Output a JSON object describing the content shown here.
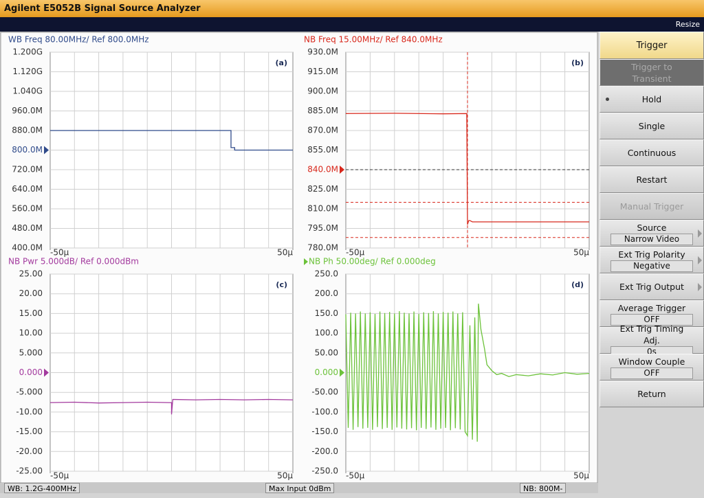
{
  "app": {
    "title": "Agilent E5052B Signal Source Analyzer",
    "resize": "Resize"
  },
  "menu": {
    "title": "Trigger",
    "keys": [
      {
        "label": "Trigger to Transient",
        "disabled": true
      },
      {
        "label": "Hold",
        "selected": true
      },
      {
        "label": "Single"
      },
      {
        "label": "Continuous"
      },
      {
        "label": "Restart"
      },
      {
        "label": "Manual Trigger",
        "disabled": true
      },
      {
        "label": "Source",
        "value": "Narrow Video",
        "submenu": true
      },
      {
        "label": "Ext Trig Polarity",
        "value": "Negative",
        "submenu": true
      },
      {
        "label": "Ext Trig Output",
        "submenu": true
      },
      {
        "label": "Average Trigger",
        "value": "OFF"
      },
      {
        "label": "Ext Trig Timing Adj.",
        "value": "0s"
      },
      {
        "label": "Window Couple",
        "value": "OFF"
      },
      {
        "label": "Return"
      }
    ]
  },
  "status": [
    "WB: 1.2G-400MHz",
    "Max Input 0dBm",
    "NB: 800M-"
  ],
  "chart_data": [
    {
      "type": "line",
      "title": "WB Freq 80.00MHz/ Ref 800.0MHz",
      "panel_label": "(a)",
      "color": "#2f4a8a",
      "x": [
        -50,
        24.5,
        24.5,
        26,
        26,
        50
      ],
      "values": [
        880,
        880,
        810,
        810,
        800,
        800
      ],
      "xlim": [
        -50,
        50
      ],
      "xticks": [
        {
          "value": -50,
          "label": "-50µ"
        },
        {
          "value": 50,
          "label": "50µ"
        }
      ],
      "xgrid": [
        -40,
        -30,
        -20,
        -10,
        0,
        10,
        20,
        30,
        40
      ],
      "ylim": [
        400,
        1200
      ],
      "yticks": [
        {
          "value": 400,
          "label": "400.0M"
        },
        {
          "value": 480,
          "label": "480.0M"
        },
        {
          "value": 560,
          "label": "560.0M"
        },
        {
          "value": 640,
          "label": "640.0M"
        },
        {
          "value": 720,
          "label": "720.0M"
        },
        {
          "value": 800,
          "label": "800.0M"
        },
        {
          "value": 880,
          "label": "880.0M"
        },
        {
          "value": 960,
          "label": "960.0M"
        },
        {
          "value": 1040,
          "label": "1.040G"
        },
        {
          "value": 1120,
          "label": "1.120G"
        },
        {
          "value": 1200,
          "label": "1.200G"
        }
      ],
      "ref_marker": 800,
      "grid": true
    },
    {
      "type": "line",
      "title": "NB Freq 15.00MHz/ Ref 840.0MHz",
      "panel_label": "(b)",
      "color": "#d8281c",
      "x": [
        -50,
        -30,
        -10,
        -0.3,
        0,
        0.5,
        1,
        2,
        50
      ],
      "values": [
        883,
        883.2,
        882.8,
        883,
        798,
        801,
        801,
        800,
        800
      ],
      "xlim": [
        -50,
        50
      ],
      "xticks": [
        {
          "value": -50,
          "label": "-50µ"
        },
        {
          "value": 50,
          "label": "50µ"
        }
      ],
      "xgrid": [
        -40,
        -30,
        -20,
        -10,
        0,
        10,
        20,
        30,
        40
      ],
      "ylim": [
        780,
        930
      ],
      "yticks": [
        {
          "value": 780,
          "label": "780.0M"
        },
        {
          "value": 795,
          "label": "795.0M"
        },
        {
          "value": 810,
          "label": "810.0M"
        },
        {
          "value": 825,
          "label": "825.0M"
        },
        {
          "value": 840,
          "label": "840.0M"
        },
        {
          "value": 855,
          "label": "855.0M"
        },
        {
          "value": 870,
          "label": "870.0M"
        },
        {
          "value": 885,
          "label": "885.0M"
        },
        {
          "value": 900,
          "label": "900.0M"
        },
        {
          "value": 915,
          "label": "915.0M"
        },
        {
          "value": 930,
          "label": "930.0M"
        }
      ],
      "ref_marker": 840,
      "ref_line": true,
      "hlines": [
        815,
        788
      ],
      "vline": 0,
      "grid": true
    },
    {
      "type": "line",
      "title": "NB Pwr 5.000dB/ Ref 0.000dBm",
      "panel_label": "(c)",
      "color": "#a33a9e",
      "x": [
        -50,
        -40,
        -30,
        -20,
        -10,
        -1,
        0,
        0,
        0.5,
        10,
        20,
        30,
        40,
        50
      ],
      "values": [
        -7.6,
        -7.5,
        -7.7,
        -7.6,
        -7.5,
        -7.6,
        -7.6,
        -10.6,
        -6.8,
        -6.9,
        -6.8,
        -6.9,
        -6.8,
        -6.9
      ],
      "xlim": [
        -50,
        50
      ],
      "xticks": [
        {
          "value": -50,
          "label": "-50µ"
        },
        {
          "value": 50,
          "label": "50µ"
        }
      ],
      "xgrid": [
        -40,
        -30,
        -20,
        -10,
        0,
        10,
        20,
        30,
        40
      ],
      "ylim": [
        -25,
        25
      ],
      "yticks": [
        {
          "value": -25,
          "label": "-25.00"
        },
        {
          "value": -20,
          "label": "-20.00"
        },
        {
          "value": -15,
          "label": "-15.00"
        },
        {
          "value": -10,
          "label": "-10.00"
        },
        {
          "value": -5,
          "label": "-5.000"
        },
        {
          "value": 0,
          "label": "0.000"
        },
        {
          "value": 5,
          "label": "5.000"
        },
        {
          "value": 10,
          "label": "10.00"
        },
        {
          "value": 15,
          "label": "15.00"
        },
        {
          "value": 20,
          "label": "20.00"
        },
        {
          "value": 25,
          "label": "25.00"
        }
      ],
      "ref_marker": 0,
      "grid": true
    },
    {
      "type": "line",
      "title": "NB Ph 50.00deg/ Ref 0.000deg",
      "panel_label": "(d)",
      "color": "#6cc23a",
      "active": true,
      "x": [
        -50,
        -49,
        -48,
        -47,
        -46,
        -45,
        -44,
        -43,
        -42,
        -41,
        -40,
        -39,
        -38,
        -37,
        -36,
        -35,
        -34,
        -33,
        -32,
        -31,
        -30,
        -29,
        -28,
        -27,
        -26,
        -25,
        -24,
        -23,
        -22,
        -21,
        -20,
        -19,
        -18,
        -17,
        -16,
        -15,
        -14,
        -13,
        -12,
        -11,
        -10,
        -9,
        -8,
        -7,
        -6,
        -5,
        -4,
        -3,
        -2,
        -1,
        0,
        1,
        2,
        3,
        4,
        4.5,
        5.5,
        7,
        8,
        10,
        12,
        14,
        17,
        20,
        25,
        30,
        35,
        40,
        45,
        50
      ],
      "values": [
        148,
        -140,
        152,
        -145,
        150,
        -138,
        155,
        -142,
        150,
        -140,
        153,
        -145,
        149,
        -138,
        155,
        -143,
        151,
        -140,
        154,
        -145,
        150,
        -139,
        156,
        -142,
        152,
        -144,
        150,
        -141,
        155,
        -146,
        149,
        -140,
        153,
        -143,
        151,
        -139,
        156,
        -145,
        150,
        -142,
        154,
        -140,
        152,
        -146,
        155,
        -141,
        150,
        -144,
        153,
        -150,
        -160,
        120,
        -170,
        140,
        -175,
        175,
        110,
        60,
        20,
        5,
        -5,
        -2,
        -10,
        -5,
        -8,
        -3,
        -6,
        0,
        -4,
        -2
      ],
      "xlim": [
        -50,
        50
      ],
      "xticks": [
        {
          "value": -50,
          "label": "-50µ"
        },
        {
          "value": 50,
          "label": "50µ"
        }
      ],
      "xgrid": [
        -40,
        -30,
        -20,
        -10,
        0,
        10,
        20,
        30,
        40
      ],
      "ylim": [
        -250,
        250
      ],
      "yticks": [
        {
          "value": -250,
          "label": "-250.0"
        },
        {
          "value": -200,
          "label": "-200.0"
        },
        {
          "value": -150,
          "label": "-150.0"
        },
        {
          "value": -100,
          "label": "-100.0"
        },
        {
          "value": -50,
          "label": "-50.00"
        },
        {
          "value": 0,
          "label": "0.000"
        },
        {
          "value": 50,
          "label": "50.00"
        },
        {
          "value": 100,
          "label": "100.0"
        },
        {
          "value": 150,
          "label": "150.0"
        },
        {
          "value": 200,
          "label": "200.0"
        },
        {
          "value": 250,
          "label": "250.0"
        }
      ],
      "ref_marker": 0,
      "grid": true
    }
  ]
}
